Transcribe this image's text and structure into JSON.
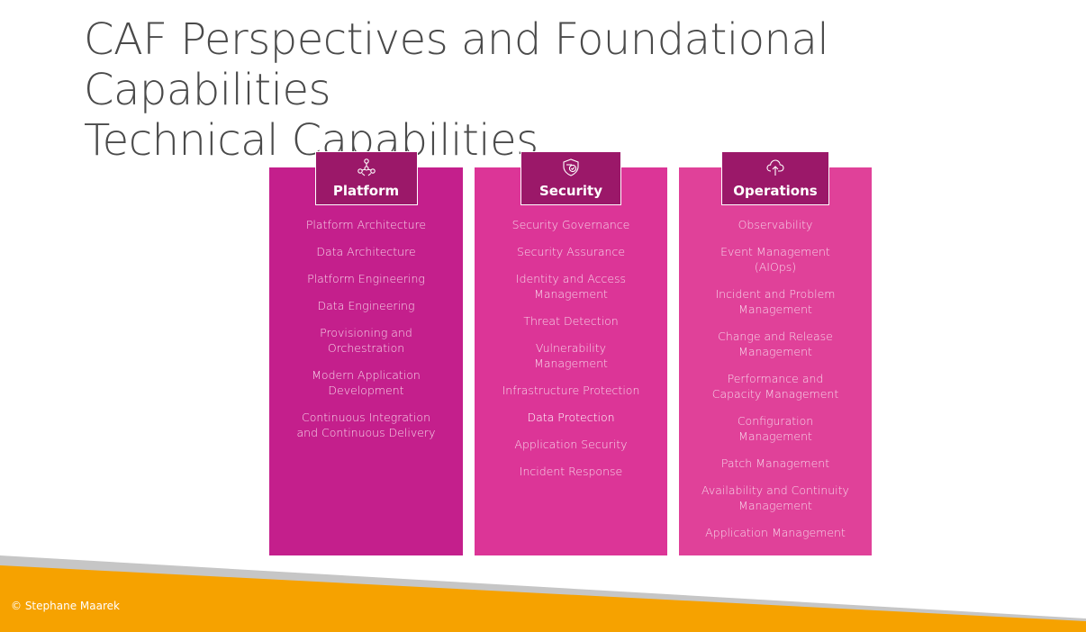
{
  "title": {
    "line1": "CAF Perspectives and Foundational Capabilities",
    "line2": "Technical Capabilities"
  },
  "columns": [
    {
      "name": "Platform",
      "icon": "network-nodes-icon",
      "items": [
        "Platform Architecture",
        "Data Architecture",
        "Platform Engineering",
        "Data Engineering",
        "Provisioning and Orchestration",
        "Modern Application Development",
        "Continuous Integration and Continuous Delivery"
      ]
    },
    {
      "name": "Security",
      "icon": "shield-check-icon",
      "items": [
        "Security Governance",
        "Security Assurance",
        "Identity and Access Management",
        "Threat Detection",
        "Vulnerability Management",
        "Infrastructure Protection",
        "Data Protection",
        "Application Security",
        "Incident Response"
      ]
    },
    {
      "name": "Operations",
      "icon": "cloud-upload-icon",
      "items": [
        "Observability",
        "Event Management (AIOps)",
        "Incident and Problem Management",
        "Change and Release Management",
        "Performance and Capacity Management",
        "Configuration Management",
        "Patch Management",
        "Availability and Continuity Management",
        "Application Management"
      ]
    }
  ],
  "footer": {
    "copyright": "© Stephane Maarek"
  },
  "colors": {
    "platform": "#c41f8c",
    "security": "#dc3597",
    "operations": "#e04199",
    "header": "#9b1869",
    "accent_orange": "#f6a200"
  }
}
